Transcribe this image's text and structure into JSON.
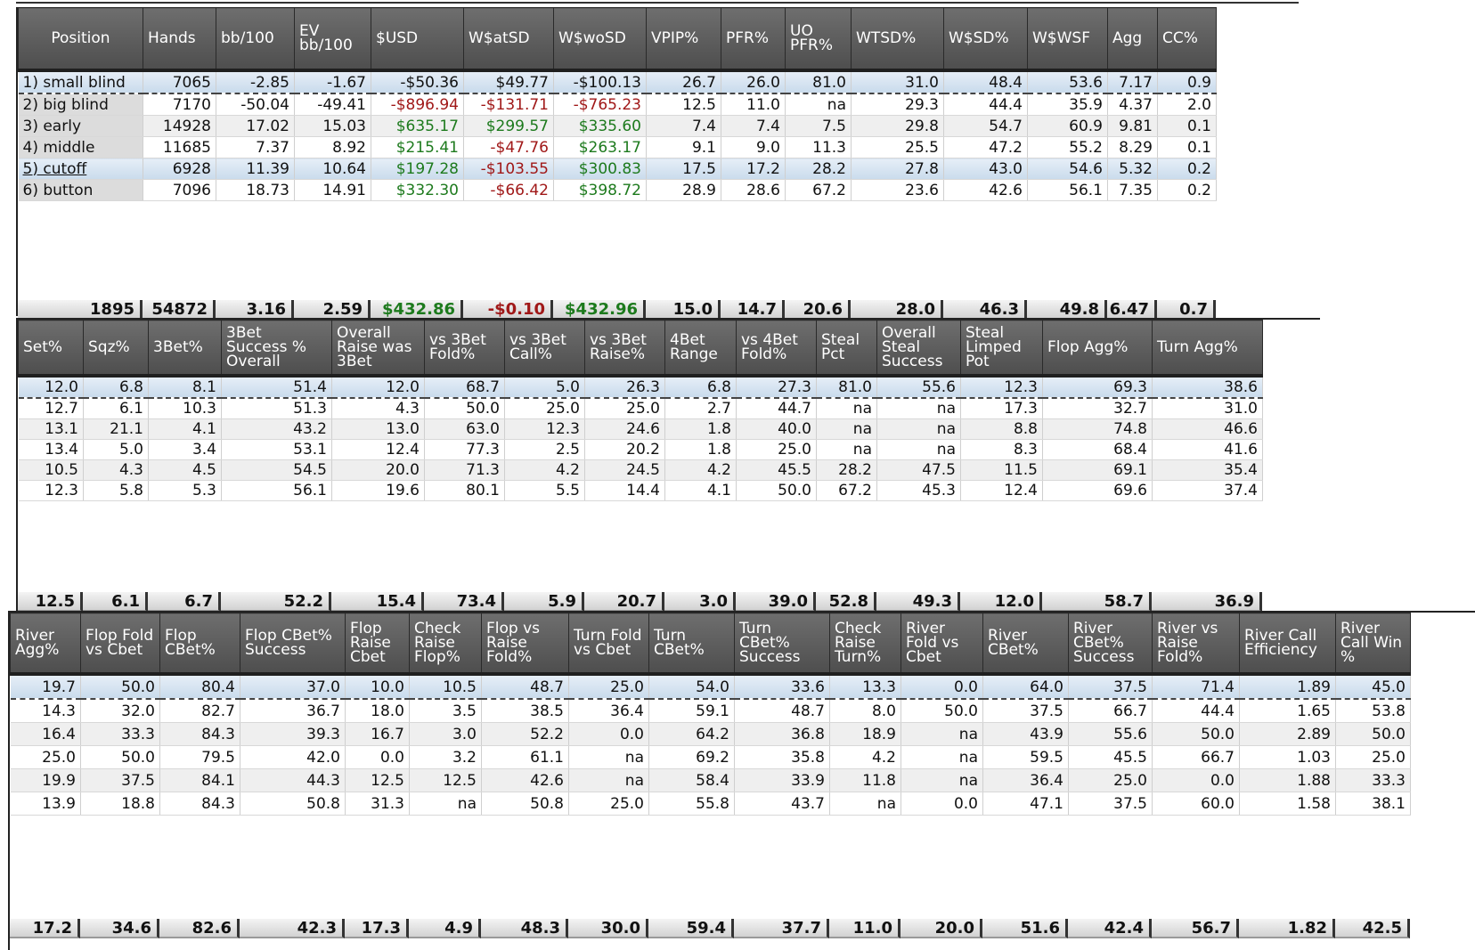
{
  "panel1": {
    "headers": [
      "Position",
      "Hands",
      "bb/100",
      "EV bb/100",
      "$USD",
      "W$atSD",
      "W$woSD",
      "VPIP%",
      "PFR%",
      "UO PFR%",
      "WTSD%",
      "W$SD%",
      "W$WSF",
      "Agg",
      "CC%"
    ],
    "rows": [
      [
        "1) small blind",
        "7065",
        "-2.85",
        "-1.67",
        "-$50.36",
        "$49.77",
        "-$100.13",
        "26.7",
        "26.0",
        "81.0",
        "31.0",
        "48.4",
        "53.6",
        "7.17",
        "0.9"
      ],
      [
        "2) big blind",
        "7170",
        "-50.04",
        "-49.41",
        "-$896.94",
        "-$131.71",
        "-$765.23",
        "12.5",
        "11.0",
        "na",
        "29.3",
        "44.4",
        "35.9",
        "4.37",
        "2.0"
      ],
      [
        "3) early",
        "14928",
        "17.02",
        "15.03",
        "$635.17",
        "$299.57",
        "$335.60",
        "7.4",
        "7.4",
        "7.5",
        "29.8",
        "54.7",
        "60.9",
        "9.81",
        "0.1"
      ],
      [
        "4) middle",
        "11685",
        "7.37",
        "8.92",
        "$215.41",
        "-$47.76",
        "$263.17",
        "9.1",
        "9.0",
        "11.3",
        "25.5",
        "47.2",
        "55.2",
        "8.29",
        "0.1"
      ],
      [
        "5) cutoff",
        "6928",
        "11.39",
        "10.64",
        "$197.28",
        "-$103.55",
        "$300.83",
        "17.5",
        "17.2",
        "28.2",
        "27.8",
        "43.0",
        "54.6",
        "5.32",
        "0.2"
      ],
      [
        "6) button",
        "7096",
        "18.73",
        "14.91",
        "$332.30",
        "-$66.42",
        "$398.72",
        "28.9",
        "28.6",
        "67.2",
        "23.6",
        "42.6",
        "56.1",
        "7.35",
        "0.2"
      ]
    ],
    "totals": [
      "1895",
      "54872",
      "3.16",
      "2.59",
      "$432.86",
      "-$0.10",
      "$432.96",
      "15.0",
      "14.7",
      "20.6",
      "28.0",
      "46.3",
      "49.8",
      "6.47",
      "0.7"
    ]
  },
  "panel2": {
    "headers": [
      "Set%",
      "Sqz%",
      "3Bet%",
      "3Bet Success % Overall",
      "Overall Raise was 3Bet",
      "vs 3Bet Fold%",
      "vs 3Bet Call%",
      "vs 3Bet Raise%",
      "4Bet Range",
      "vs 4Bet Fold%",
      "Steal Pct",
      "Overall Steal Success",
      "Steal Limped Pot",
      "Flop Agg%",
      "Turn Agg%"
    ],
    "rows": [
      [
        "12.0",
        "6.8",
        "8.1",
        "51.4",
        "12.0",
        "68.7",
        "5.0",
        "26.3",
        "6.8",
        "27.3",
        "81.0",
        "55.6",
        "12.3",
        "69.3",
        "38.6"
      ],
      [
        "12.7",
        "6.1",
        "10.3",
        "51.3",
        "4.3",
        "50.0",
        "25.0",
        "25.0",
        "2.7",
        "44.7",
        "na",
        "na",
        "17.3",
        "32.7",
        "31.0"
      ],
      [
        "13.1",
        "21.1",
        "4.1",
        "43.2",
        "13.0",
        "63.0",
        "12.3",
        "24.6",
        "1.8",
        "40.0",
        "na",
        "na",
        "8.8",
        "74.8",
        "46.6"
      ],
      [
        "13.4",
        "5.0",
        "3.4",
        "53.1",
        "12.4",
        "77.3",
        "2.5",
        "20.2",
        "1.8",
        "25.0",
        "na",
        "na",
        "8.3",
        "68.4",
        "41.6"
      ],
      [
        "10.5",
        "4.3",
        "4.5",
        "54.5",
        "20.0",
        "71.3",
        "4.2",
        "24.5",
        "4.2",
        "45.5",
        "28.2",
        "47.5",
        "11.5",
        "69.1",
        "35.4"
      ],
      [
        "12.3",
        "5.8",
        "5.3",
        "56.1",
        "19.6",
        "80.1",
        "5.5",
        "14.4",
        "4.1",
        "50.0",
        "67.2",
        "45.3",
        "12.4",
        "69.6",
        "37.4"
      ]
    ],
    "totals": [
      "12.5",
      "6.1",
      "6.7",
      "52.2",
      "15.4",
      "73.4",
      "5.9",
      "20.7",
      "3.0",
      "39.0",
      "52.8",
      "49.3",
      "12.0",
      "58.7",
      "36.9"
    ]
  },
  "panel3": {
    "headers": [
      "River Agg%",
      "Flop Fold vs Cbet",
      "Flop CBet%",
      "Flop CBet% Success",
      "Flop Raise Cbet",
      "Check Raise Flop%",
      "Flop vs Raise Fold%",
      "Turn Fold vs Cbet",
      "Turn CBet%",
      "Turn CBet% Success",
      "Check Raise Turn%",
      "River Fold vs Cbet",
      "River CBet%",
      "River CBet% Success",
      "River vs Raise Fold%",
      "River Call Efficiency",
      "River Call Win %"
    ],
    "rows": [
      [
        "19.7",
        "50.0",
        "80.4",
        "37.0",
        "10.0",
        "10.5",
        "48.7",
        "25.0",
        "54.0",
        "33.6",
        "13.3",
        "0.0",
        "64.0",
        "37.5",
        "71.4",
        "1.89",
        "45.0"
      ],
      [
        "14.3",
        "32.0",
        "82.7",
        "36.7",
        "18.0",
        "3.5",
        "38.5",
        "36.4",
        "59.1",
        "48.7",
        "8.0",
        "50.0",
        "37.5",
        "66.7",
        "44.4",
        "1.65",
        "53.8"
      ],
      [
        "16.4",
        "33.3",
        "84.3",
        "39.3",
        "16.7",
        "3.0",
        "52.2",
        "0.0",
        "64.2",
        "36.8",
        "18.9",
        "na",
        "43.9",
        "55.6",
        "50.0",
        "2.89",
        "50.0"
      ],
      [
        "25.0",
        "50.0",
        "79.5",
        "42.0",
        "0.0",
        "3.2",
        "61.1",
        "na",
        "69.2",
        "35.8",
        "4.2",
        "na",
        "59.5",
        "45.5",
        "66.7",
        "1.03",
        "25.0"
      ],
      [
        "19.9",
        "37.5",
        "84.1",
        "44.3",
        "12.5",
        "12.5",
        "42.6",
        "na",
        "58.4",
        "33.9",
        "11.8",
        "na",
        "36.4",
        "25.0",
        "0.0",
        "1.88",
        "33.3"
      ],
      [
        "13.9",
        "18.8",
        "84.3",
        "50.8",
        "31.3",
        "na",
        "50.8",
        "25.0",
        "55.8",
        "43.7",
        "na",
        "0.0",
        "47.1",
        "37.5",
        "60.0",
        "1.58",
        "38.1"
      ]
    ],
    "totals": [
      "17.2",
      "34.6",
      "82.6",
      "42.3",
      "17.3",
      "4.9",
      "48.3",
      "30.0",
      "59.4",
      "37.7",
      "11.0",
      "20.0",
      "51.6",
      "42.4",
      "56.7",
      "1.82",
      "42.5"
    ]
  },
  "colors": {
    "positive": "#1d7a1d",
    "negative": "#a01818",
    "header_bg": "#5a5a5a",
    "selected_row": "#c9dbec"
  }
}
